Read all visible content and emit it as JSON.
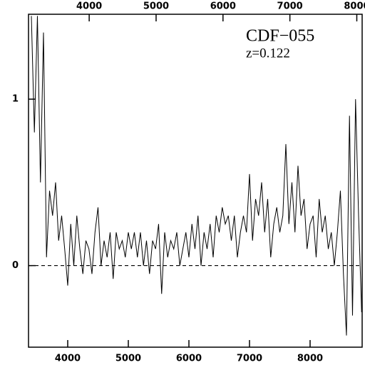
{
  "chart_data": {
    "type": "line",
    "annotations": [
      "CDF−055",
      "z=0.122"
    ],
    "x": [
      3400,
      3450,
      3500,
      3550,
      3600,
      3650,
      3700,
      3750,
      3800,
      3850,
      3900,
      3950,
      4000,
      4050,
      4100,
      4150,
      4200,
      4250,
      4300,
      4350,
      4400,
      4450,
      4500,
      4550,
      4600,
      4650,
      4700,
      4750,
      4800,
      4850,
      4900,
      4950,
      5000,
      5050,
      5100,
      5150,
      5200,
      5250,
      5300,
      5350,
      5400,
      5450,
      5500,
      5550,
      5600,
      5650,
      5700,
      5750,
      5800,
      5850,
      5900,
      5950,
      6000,
      6050,
      6100,
      6150,
      6200,
      6250,
      6300,
      6350,
      6400,
      6450,
      6500,
      6550,
      6600,
      6650,
      6700,
      6750,
      6800,
      6850,
      6900,
      6950,
      7000,
      7050,
      7100,
      7150,
      7200,
      7250,
      7300,
      7350,
      7400,
      7450,
      7500,
      7550,
      7600,
      7650,
      7700,
      7750,
      7800,
      7850,
      7900,
      7950,
      8000,
      8050,
      8100,
      8150,
      8200,
      8250,
      8300,
      8350,
      8400,
      8450,
      8500,
      8550,
      8600,
      8650,
      8700,
      8750,
      8800,
      8850
    ],
    "values": [
      1.5,
      0.8,
      1.5,
      0.5,
      1.4,
      0.05,
      0.45,
      0.3,
      0.5,
      0.15,
      0.3,
      0.1,
      -0.12,
      0.25,
      0.0,
      0.3,
      0.1,
      -0.05,
      0.15,
      0.1,
      -0.05,
      0.2,
      0.35,
      0.0,
      0.15,
      0.05,
      0.2,
      -0.08,
      0.2,
      0.1,
      0.15,
      0.05,
      0.2,
      0.1,
      0.2,
      0.05,
      0.2,
      0.0,
      0.15,
      -0.05,
      0.15,
      0.1,
      0.25,
      -0.17,
      0.2,
      0.05,
      0.15,
      0.1,
      0.2,
      0.0,
      0.1,
      0.2,
      0.05,
      0.25,
      0.1,
      0.3,
      0.0,
      0.2,
      0.1,
      0.25,
      0.05,
      0.3,
      0.2,
      0.35,
      0.25,
      0.3,
      0.15,
      0.3,
      0.05,
      0.2,
      0.3,
      0.2,
      0.55,
      0.15,
      0.4,
      0.3,
      0.5,
      0.2,
      0.4,
      0.05,
      0.25,
      0.35,
      0.2,
      0.3,
      0.73,
      0.25,
      0.5,
      0.2,
      0.6,
      0.3,
      0.4,
      0.1,
      0.25,
      0.3,
      0.05,
      0.4,
      0.2,
      0.3,
      0.1,
      0.2,
      0.0,
      0.2,
      0.45,
      -0.05,
      -0.42,
      0.9,
      -0.3,
      1.0,
      0.3,
      -0.28
    ],
    "color": "#000000",
    "xlim": [
      3353,
      8859
    ],
    "xticks": [
      4000,
      5000,
      6000,
      7000,
      8000
    ],
    "x2lim": [
      3093,
      8080
    ],
    "x2ticks": [
      4000,
      5000,
      6000,
      7000,
      8000
    ],
    "ylim": [
      -0.49,
      1.51
    ],
    "yticks": [
      0,
      1
    ],
    "hline": 0
  }
}
